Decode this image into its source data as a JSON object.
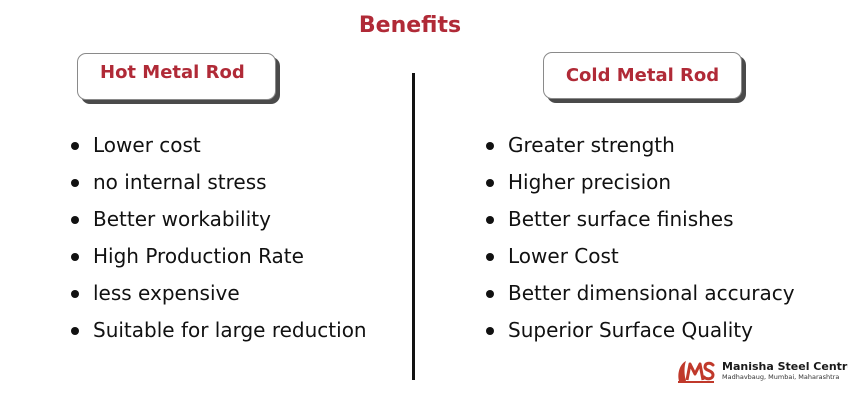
{
  "title": "Benefits",
  "left_column": {
    "header": "Hot Metal Rod",
    "items": [
      "Lower cost",
      "no internal stress",
      "Better workability",
      "High Production Rate",
      "less expensive",
      "Suitable for large reduction"
    ]
  },
  "right_column": {
    "header": "Cold Metal Rod",
    "items": [
      "Greater strength",
      "Higher precision",
      "Better surface finishes",
      "Lower Cost",
      "Better dimensional accuracy",
      "Superior Surface Quality"
    ]
  },
  "logo": {
    "icon": "manisha-steel-logo-icon",
    "name": "Manisha Steel Centre",
    "address": "Madhavbaug, Mumbai, Maharashtra"
  },
  "colors": {
    "accent": "#b02a37",
    "text": "#111111",
    "background": "#ffffff"
  }
}
